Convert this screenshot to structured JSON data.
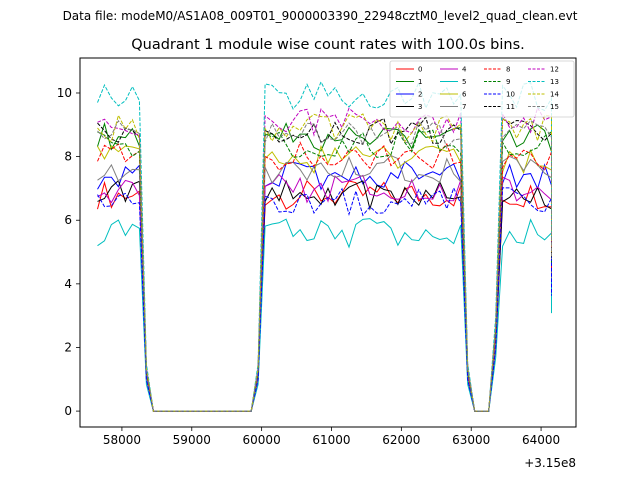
{
  "chart_data": {
    "type": "line",
    "suptitle": "Data file: modeM0/AS1A08_009T01_9000003390_22948cztM0_level2_quad_clean.evt",
    "title": "Quadrant 1 module wise count rates with 100.0s bins.",
    "xlabel": "",
    "ylabel": "",
    "x_offset_label": "+3.15e8",
    "xlim": [
      57400,
      64500
    ],
    "ylim": [
      -0.5,
      11.1
    ],
    "xticks": [
      58000,
      59000,
      60000,
      61000,
      62000,
      63000,
      64000
    ],
    "yticks": [
      0,
      2,
      4,
      6,
      8,
      10
    ],
    "grid": false,
    "legend": {
      "position": "top-right",
      "ncol": 4
    },
    "segments": [
      {
        "x_start": 57650,
        "n": 7
      },
      {
        "x_start": 58350,
        "n": 17
      },
      {
        "x_start": 60050,
        "n": 29
      },
      {
        "x_start": 62950,
        "n": 5
      },
      {
        "x_start": 63450,
        "n": 8
      }
    ],
    "series": [
      {
        "name": "0",
        "color": "#ff0000",
        "dash": "solid",
        "level": 6.8
      },
      {
        "name": "1",
        "color": "#008000",
        "dash": "solid",
        "level": 8.6
      },
      {
        "name": "2",
        "color": "#0000ff",
        "dash": "solid",
        "level": 7.4
      },
      {
        "name": "3",
        "color": "#000000",
        "dash": "solid",
        "level": 6.8
      },
      {
        "name": "4",
        "color": "#bf00bf",
        "dash": "solid",
        "level": 7.0
      },
      {
        "name": "5",
        "color": "#00bfbf",
        "dash": "solid",
        "level": 5.6
      },
      {
        "name": "6",
        "color": "#bfbf00",
        "dash": "solid",
        "level": 7.9
      },
      {
        "name": "7",
        "color": "#808080",
        "dash": "solid",
        "level": 7.6
      },
      {
        "name": "8",
        "color": "#ff0000",
        "dash": "dashed",
        "level": 8.0
      },
      {
        "name": "9",
        "color": "#008000",
        "dash": "dashed",
        "level": 8.4
      },
      {
        "name": "10",
        "color": "#0000ff",
        "dash": "dashed",
        "level": 6.6
      },
      {
        "name": "11",
        "color": "#000000",
        "dash": "dashed",
        "level": 8.8
      },
      {
        "name": "12",
        "color": "#bf00bf",
        "dash": "dashed",
        "level": 9.1
      },
      {
        "name": "13",
        "color": "#00bfbf",
        "dash": "dashed",
        "level": 9.9
      },
      {
        "name": "14",
        "color": "#bfbf00",
        "dash": "dashed",
        "level": 8.9
      },
      {
        "name": "15",
        "color": "#808080",
        "dash": "dashed",
        "level": 8.7
      }
    ]
  }
}
